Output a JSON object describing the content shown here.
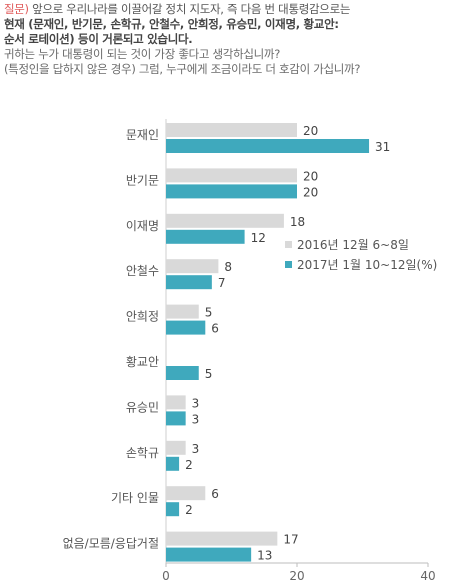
{
  "question": {
    "prefix": "질문)",
    "line1": "앞으로 우리나라를 이끌어갈 정치 지도자, 즉 다음 번 대통령감으로는",
    "line2": "현재 (문재인, 반기문, 손학규, 안철수, 안희정, 유승민, 이재명, 황교안:",
    "line3": "순서 로테이션) 등이 거론되고 있습니다.",
    "line4": "귀하는 누가 대통령이 되는 것이 가장 좋다고 생각하십니까?",
    "line5": "(특정인을 답하지 않은 경우) 그럼, 누구에게 조금이라도 더 호감이 가십니까?"
  },
  "chart_data": {
    "type": "bar",
    "orientation": "horizontal",
    "categories": [
      "문재인",
      "반기문",
      "이재명",
      "안철수",
      "안희정",
      "황교안",
      "유승민",
      "손학규",
      "기타 인물",
      "없음/모름/응답거절"
    ],
    "series": [
      {
        "name": "2016년 12월 6~8일",
        "color": "#d9d9d9",
        "values": [
          20,
          20,
          18,
          8,
          5,
          null,
          3,
          3,
          6,
          17
        ]
      },
      {
        "name": "2017년 1월 10~12일(%)",
        "color": "#3fa9bd",
        "values": [
          31,
          20,
          12,
          7,
          6,
          5,
          3,
          2,
          2,
          13
        ]
      }
    ],
    "xlim": [
      0,
      40
    ],
    "xticks": [
      0,
      20,
      40
    ],
    "legend_position": "right-middle"
  },
  "colors": {
    "prefix": "#e05a5a",
    "series_2016": "#d9d9d9",
    "series_2017": "#3fa9bd",
    "text": "#555555"
  }
}
